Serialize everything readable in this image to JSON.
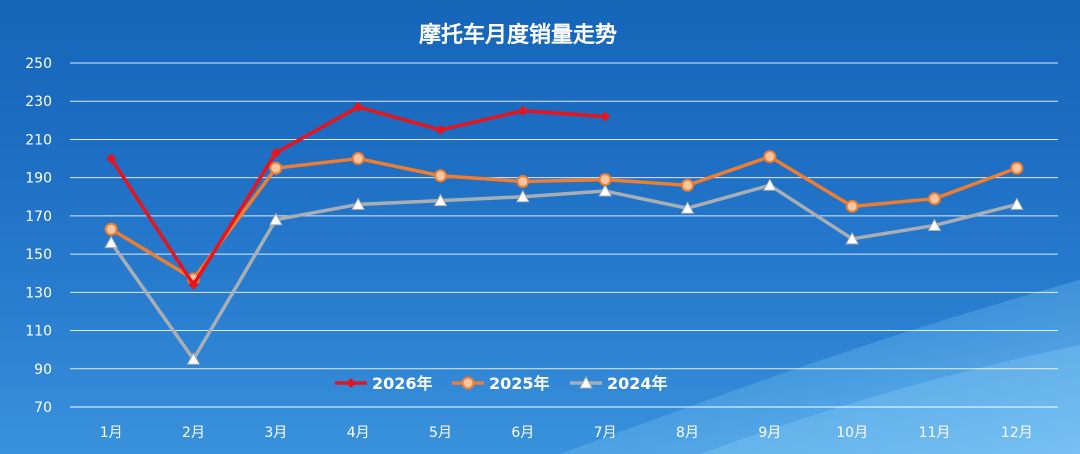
{
  "chart_data": {
    "type": "line",
    "title": "摩托车月度销量走势",
    "categories": [
      "1月",
      "2月",
      "3月",
      "4月",
      "5月",
      "6月",
      "7月",
      "8月",
      "9月",
      "10月",
      "11月",
      "12月"
    ],
    "ylim": [
      70,
      250
    ],
    "yticks": [
      70,
      90,
      110,
      130,
      150,
      170,
      190,
      210,
      230,
      250
    ],
    "grid": true,
    "legend_position": "bottom-center",
    "series": [
      {
        "name": "2026年",
        "color": "#e8141c",
        "marker": "diamond",
        "values": [
          200,
          134,
          203,
          227,
          215,
          225,
          222,
          null,
          null,
          null,
          null,
          null
        ]
      },
      {
        "name": "2025年",
        "color": "#ee7d31",
        "marker": "circle",
        "values": [
          163,
          137,
          195,
          200,
          191,
          188,
          189,
          186,
          201,
          175,
          179,
          195
        ]
      },
      {
        "name": "2024年",
        "color": "#a9aeb4",
        "marker": "triangle",
        "values": [
          156,
          95,
          168,
          176,
          178,
          180,
          183,
          174,
          186,
          158,
          165,
          176
        ]
      }
    ]
  }
}
